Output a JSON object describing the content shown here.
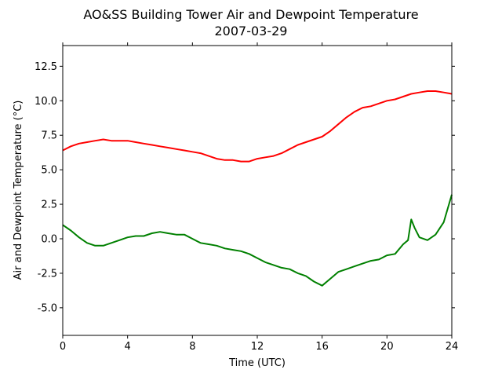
{
  "chart_data": {
    "type": "line",
    "title": "AO&SS Building Tower Air and Dewpoint Temperature",
    "subtitle": "2007-03-29",
    "xlabel": "Time (UTC)",
    "ylabel": "Air and Dewpoint Temperature (°C)",
    "xlim": [
      0,
      24
    ],
    "ylim": [
      -7,
      14
    ],
    "xticks": [
      0,
      4,
      8,
      12,
      16,
      20,
      24
    ],
    "yticks": [
      -5.0,
      -2.5,
      0.0,
      2.5,
      5.0,
      7.5,
      10.0,
      12.5
    ],
    "grid": false,
    "series": [
      {
        "color": "#ff0000",
        "x": [
          0,
          0.5,
          1,
          1.5,
          2,
          2.5,
          3,
          3.5,
          4,
          4.5,
          5,
          5.5,
          6,
          6.5,
          7,
          7.5,
          8,
          8.5,
          9,
          9.5,
          10,
          10.5,
          11,
          11.5,
          12,
          12.5,
          13,
          13.5,
          14,
          14.5,
          15,
          15.5,
          16,
          16.5,
          17,
          17.5,
          18,
          18.5,
          19,
          19.5,
          20,
          20.5,
          21,
          21.5,
          22,
          22.5,
          23,
          23.5,
          24
        ],
        "y": [
          6.4,
          6.7,
          6.9,
          7.0,
          7.1,
          7.2,
          7.1,
          7.1,
          7.1,
          7.0,
          6.9,
          6.8,
          6.7,
          6.6,
          6.5,
          6.4,
          6.3,
          6.2,
          6.0,
          5.8,
          5.7,
          5.7,
          5.6,
          5.6,
          5.8,
          5.9,
          6.0,
          6.2,
          6.5,
          6.8,
          7.0,
          7.2,
          7.4,
          7.8,
          8.3,
          8.8,
          9.2,
          9.5,
          9.6,
          9.8,
          10.0,
          10.1,
          10.3,
          10.5,
          10.6,
          10.7,
          10.7,
          10.6,
          10.5
        ]
      },
      {
        "color": "#008000",
        "x": [
          0,
          0.5,
          1,
          1.5,
          2,
          2.5,
          3,
          3.5,
          4,
          4.5,
          5,
          5.5,
          6,
          6.5,
          7,
          7.5,
          8,
          8.5,
          9,
          9.5,
          10,
          10.5,
          11,
          11.5,
          12,
          12.5,
          13,
          13.5,
          14,
          14.5,
          15,
          15.5,
          16,
          16.5,
          17,
          17.5,
          18,
          18.5,
          19,
          19.5,
          20,
          20.5,
          21,
          21.3,
          21.5,
          21.7,
          22,
          22.5,
          23,
          23.5,
          24
        ],
        "y": [
          1.0,
          0.6,
          0.1,
          -0.3,
          -0.5,
          -0.5,
          -0.3,
          -0.1,
          0.1,
          0.2,
          0.2,
          0.4,
          0.5,
          0.4,
          0.3,
          0.3,
          0.0,
          -0.3,
          -0.4,
          -0.5,
          -0.7,
          -0.8,
          -0.9,
          -1.1,
          -1.4,
          -1.7,
          -1.9,
          -2.1,
          -2.2,
          -2.5,
          -2.7,
          -3.1,
          -3.4,
          -2.9,
          -2.4,
          -2.2,
          -2.0,
          -1.8,
          -1.6,
          -1.5,
          -1.2,
          -1.1,
          -0.4,
          -0.1,
          1.4,
          0.8,
          0.1,
          -0.1,
          0.3,
          1.2,
          3.2
        ]
      }
    ]
  }
}
